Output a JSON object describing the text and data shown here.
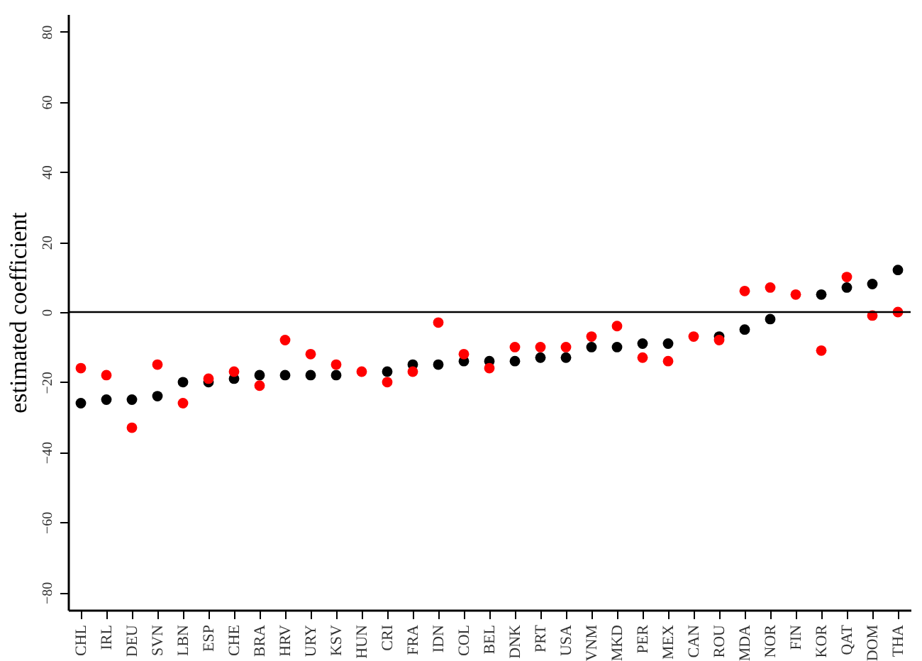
{
  "chart_data": {
    "type": "scatter",
    "ylabel": "estimated coefficient",
    "categories": [
      "CHL",
      "IRL",
      "DEU",
      "SVN",
      "LBN",
      "ESP",
      "CHE",
      "BRA",
      "HRV",
      "URY",
      "KSV",
      "HUN",
      "CRI",
      "FRA",
      "IDN",
      "COL",
      "BEL",
      "DNK",
      "PRT",
      "USA",
      "VNM",
      "MKD",
      "PER",
      "MEX",
      "CAN",
      "ROU",
      "MDA",
      "NOR",
      "FIN",
      "KOR",
      "QAT",
      "DOM",
      "THA"
    ],
    "ylim": [
      -85,
      85
    ],
    "yticks": [
      -80,
      -60,
      -40,
      -20,
      0,
      20,
      40,
      60,
      80
    ],
    "marker": "circle",
    "ref_lines": [
      {
        "axis": "y",
        "value": 0,
        "color": "#000000"
      }
    ],
    "series": [
      {
        "color": "#000000",
        "values": [
          -26,
          -25,
          -25,
          -24,
          -20,
          -20,
          -19,
          -18,
          -18,
          -18,
          -18,
          null,
          -17,
          -15,
          -15,
          -14,
          -14,
          -14,
          -13,
          -13,
          -10,
          -10,
          -9,
          -9,
          null,
          -7,
          -5,
          -2,
          null,
          5,
          7,
          8,
          12
        ]
      },
      {
        "color": "#ff0000",
        "values": [
          -16,
          -18,
          -33,
          -15,
          -26,
          -19,
          -17,
          -21,
          -8,
          -12,
          -15,
          -17,
          -20,
          -17,
          -3,
          -12,
          -16,
          -10,
          -10,
          -10,
          -7,
          -4,
          -13,
          -14,
          -7,
          -8,
          6,
          7,
          5,
          -11,
          10,
          -1,
          0
        ]
      }
    ]
  }
}
